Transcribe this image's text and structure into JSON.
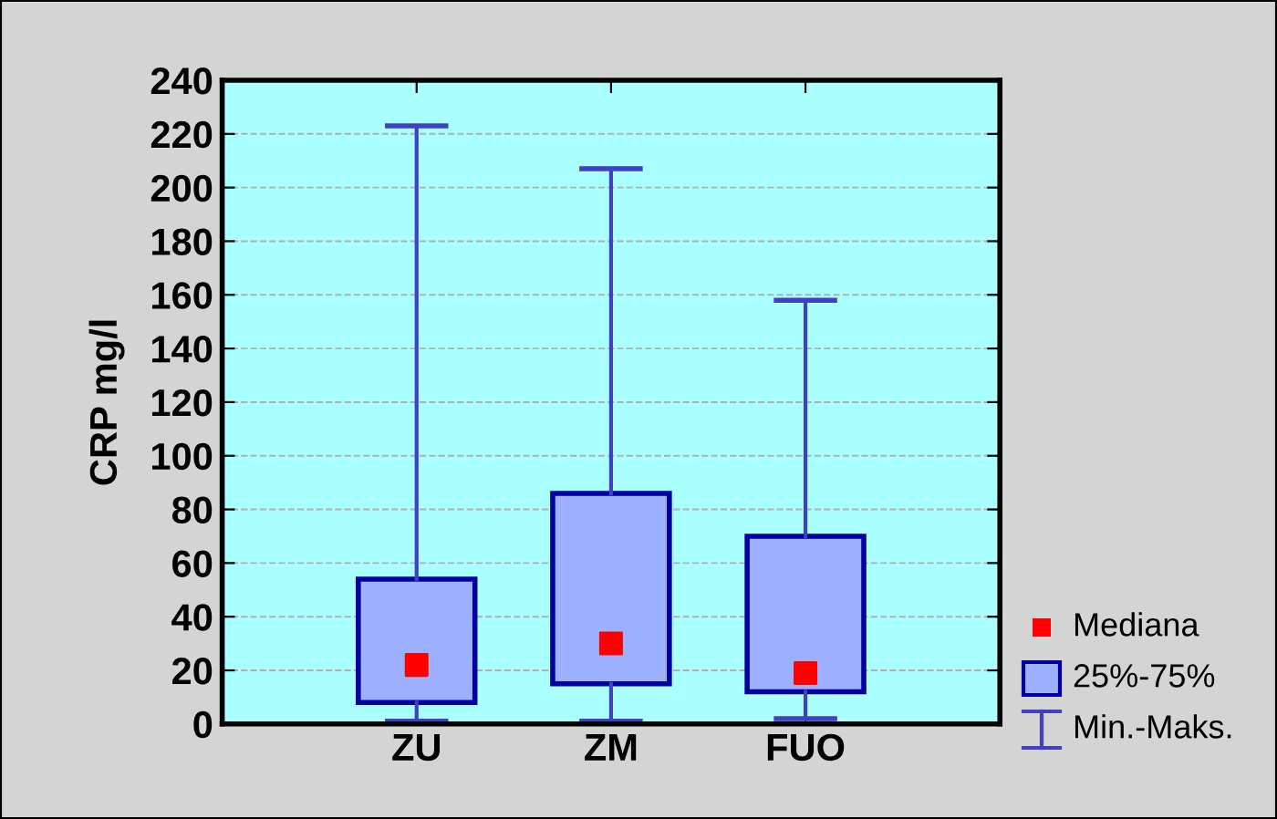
{
  "chart_data": {
    "type": "box",
    "ylabel": "CRP mg/l",
    "categories": [
      "ZU",
      "ZM",
      "FUO"
    ],
    "series": [
      {
        "color": "#9cb0ff",
        "boxes": [
          {
            "low": 1,
            "q1": 8,
            "median": 22,
            "q3": 54,
            "high": 223
          },
          {
            "low": 1,
            "q1": 15,
            "median": 30,
            "q3": 86,
            "high": 207
          },
          {
            "low": 2,
            "q1": 12,
            "median": 19,
            "q3": 70,
            "high": 158
          }
        ]
      }
    ],
    "annotations": [
      "Mediana",
      "25%-75%",
      "Min.-Maks."
    ],
    "ylim": [
      0,
      240
    ],
    "yticks": [
      0,
      20,
      40,
      60,
      80,
      100,
      120,
      140,
      160,
      180,
      200,
      220,
      240
    ],
    "grid": "y",
    "marker": "square"
  }
}
